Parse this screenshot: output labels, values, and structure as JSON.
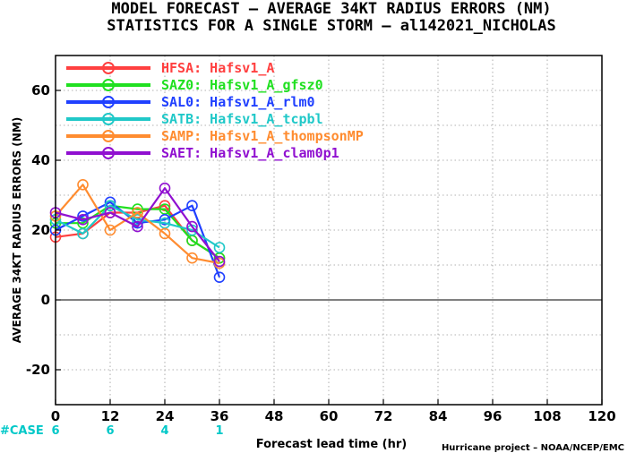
{
  "header": {
    "title_line1": "MODEL FORECAST – AVERAGE 34KT RADIUS ERRORS (NM)",
    "title_line2": "STATISTICS FOR A SINGLE STORM – al142021_NICHOLAS"
  },
  "footer": {
    "credit": "Hurricane project – NOAA/NCEP/EMC",
    "case_label": "#CASE"
  },
  "colors": {
    "case": "#00c8c8",
    "zero_line": "#000000",
    "grid": "#999999"
  },
  "chart_data": {
    "type": "line",
    "title": "MODEL FORECAST – AVERAGE 34KT RADIUS ERRORS (NM)",
    "subtitle": "STATISTICS FOR A SINGLE STORM – al142021_NICHOLAS",
    "xlabel": "Forecast lead time (hr)",
    "ylabel": "AVERAGE 34KT RADIUS ERRORS (NM)",
    "xlim": [
      0,
      120
    ],
    "ylim": [
      -30,
      70
    ],
    "xticks": [
      0,
      12,
      24,
      36,
      48,
      60,
      72,
      84,
      96,
      108,
      120
    ],
    "yticks": [
      -20,
      0,
      20,
      40,
      60
    ],
    "grid": true,
    "legend_position": "top-left",
    "cases": {
      "x": [
        0,
        12,
        24,
        36
      ],
      "n": [
        6,
        6,
        4,
        1
      ]
    },
    "series": [
      {
        "name": "HFSA: Hafsv1_A",
        "color": "#ff4040",
        "x": [
          0,
          6,
          12,
          18,
          24,
          30,
          36
        ],
        "values": [
          18,
          19,
          25,
          25,
          27,
          17,
          12
        ]
      },
      {
        "name": "SAZ0: Hafsv1_A_gfsz0",
        "color": "#20e020",
        "x": [
          0,
          6,
          12,
          18,
          24,
          30,
          36
        ],
        "values": [
          22,
          22,
          27,
          26,
          26,
          17,
          12
        ]
      },
      {
        "name": "SAL0: Hafsv1_A_rlm0",
        "color": "#2040ff",
        "x": [
          0,
          6,
          12,
          18,
          24,
          30,
          36
        ],
        "values": [
          20,
          24,
          28,
          22,
          23,
          27,
          6.5
        ]
      },
      {
        "name": "SATB: Hafsv1_A_tcpbl",
        "color": "#20c8c8",
        "x": [
          0,
          6,
          12,
          18,
          24,
          30,
          36
        ],
        "values": [
          23,
          19,
          27,
          23,
          22,
          20,
          15
        ]
      },
      {
        "name": "SAMP: Hafsv1_A_thompsonMP",
        "color": "#ff8c30",
        "x": [
          0,
          6,
          12,
          18,
          24,
          30,
          36
        ],
        "values": [
          24,
          33,
          20,
          25,
          19,
          12,
          10.5
        ]
      },
      {
        "name": "SAET: Hafsv1_A_clam0p1",
        "color": "#9010d0",
        "x": [
          0,
          6,
          12,
          18,
          24,
          30,
          36
        ],
        "values": [
          25,
          23,
          25,
          21,
          32,
          21,
          11
        ]
      }
    ]
  }
}
